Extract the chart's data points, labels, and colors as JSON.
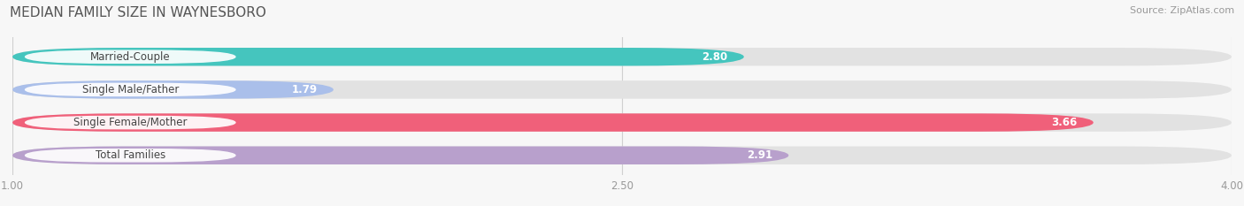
{
  "title": "MEDIAN FAMILY SIZE IN WAYNESBORO",
  "source": "Source: ZipAtlas.com",
  "categories": [
    "Married-Couple",
    "Single Male/Father",
    "Single Female/Mother",
    "Total Families"
  ],
  "values": [
    2.8,
    1.79,
    3.66,
    2.91
  ],
  "bar_colors": [
    "#45C5BE",
    "#AABFEA",
    "#F0607A",
    "#B8A0CC"
  ],
  "xlim_data": [
    1.0,
    4.0
  ],
  "xticks": [
    1.0,
    2.5,
    4.0
  ],
  "xtick_labels": [
    "1.00",
    "2.50",
    "4.00"
  ],
  "background_color": "#f7f7f7",
  "bar_bg_color": "#e2e2e2",
  "label_bg_color": "#ffffff",
  "title_fontsize": 11,
  "source_fontsize": 8,
  "label_fontsize": 8.5,
  "value_fontsize": 8.5,
  "bar_height": 0.55,
  "bar_gap": 0.45
}
